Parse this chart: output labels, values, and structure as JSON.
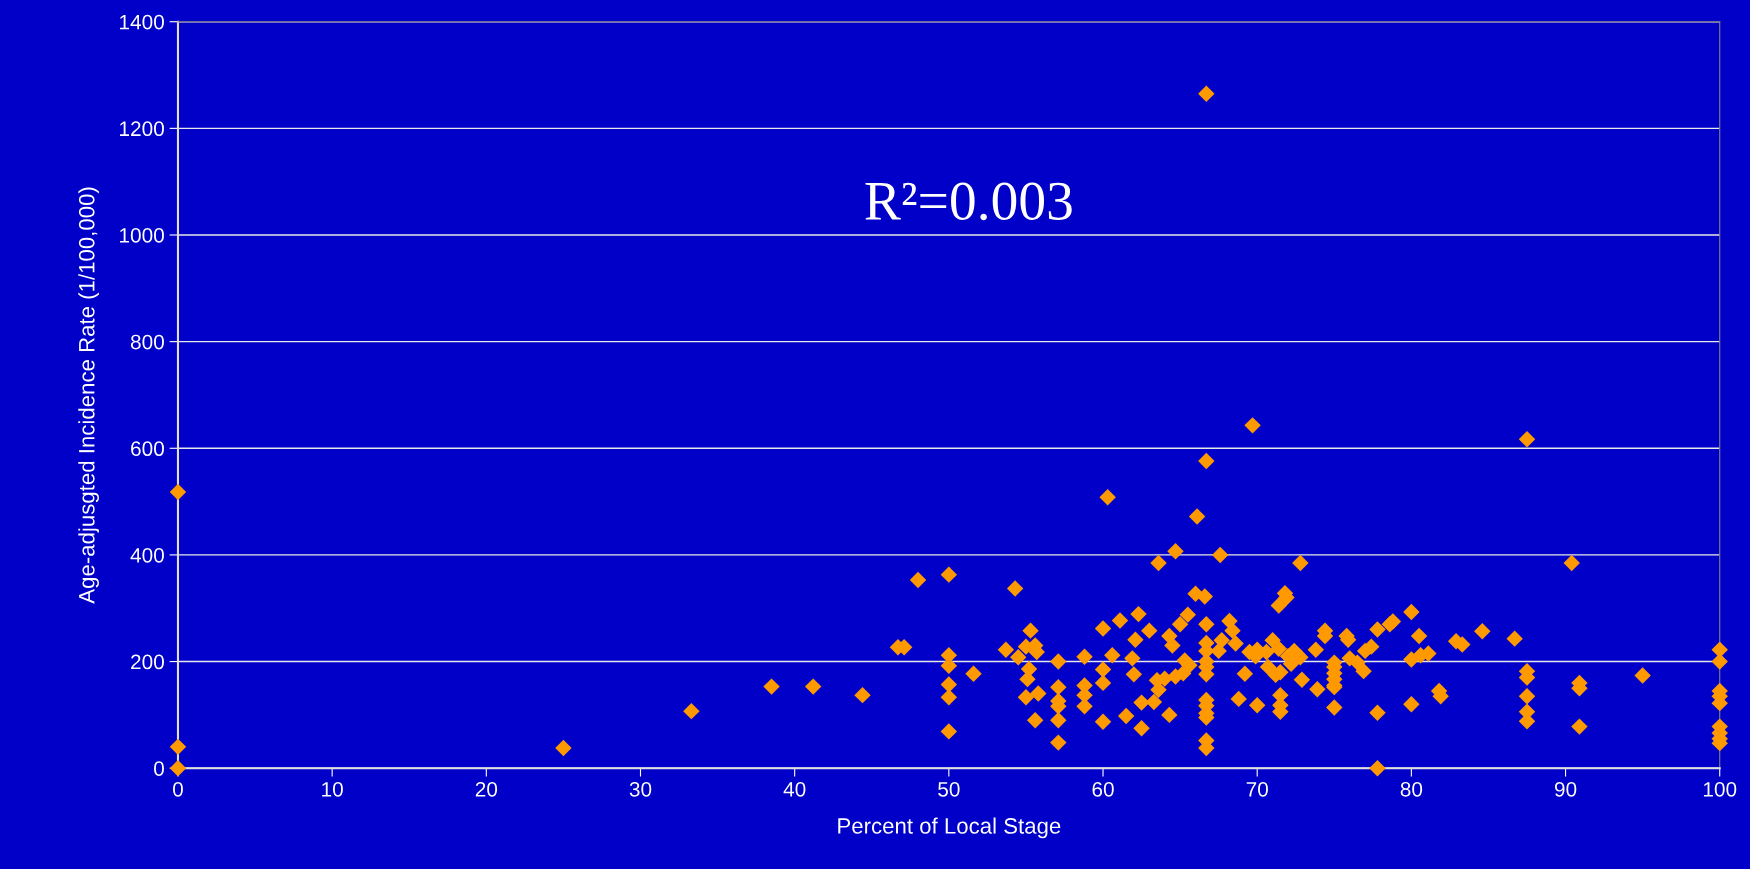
{
  "chart_data": {
    "type": "scatter",
    "xlabel": "Percent of Local Stage",
    "ylabel": "Age-adjusgted Incidence Rate (1/100,000)",
    "annotations": [
      "R²=0.003"
    ],
    "xlim": [
      0,
      100
    ],
    "xticks": [
      0,
      10,
      20,
      30,
      40,
      50,
      60,
      70,
      80,
      90,
      100
    ],
    "ylim": [
      0,
      1400
    ],
    "yticks": [
      0,
      200,
      400,
      600,
      800,
      1000,
      1200,
      1400
    ],
    "grid": "y",
    "marker": "diamond",
    "legend": false,
    "series": [
      {
        "color": "#ff9900",
        "x": [
          0,
          0,
          0,
          25,
          33.3,
          38.5,
          41.2,
          44.4,
          46.7,
          47.1,
          48,
          50,
          50,
          50,
          50,
          50,
          50,
          51.6,
          53.7,
          54.3,
          54.5,
          55,
          55.3,
          55.2,
          55.1,
          55,
          55.6,
          55.7,
          55.8,
          55.6,
          57.1,
          57.1,
          57.1,
          57.1,
          57.1,
          57.1,
          58.8,
          58.8,
          58.8,
          58.8,
          60,
          60,
          60,
          60,
          60.3,
          60.6,
          61.1,
          61.5,
          61.9,
          62,
          62.1,
          62.3,
          62.5,
          62.5,
          63,
          63.3,
          63.6,
          63.5,
          63.6,
          64,
          64.3,
          64.3,
          64.5,
          64.7,
          64.7,
          65,
          65.2,
          65.3,
          65.5,
          65.6,
          66,
          66.1,
          66.6,
          66.7,
          66.7,
          66.7,
          66.7,
          66.7,
          66.7,
          66.7,
          66.7,
          66.7,
          66.7,
          66.7,
          66.7,
          66.7,
          66.7,
          67.6,
          67.5,
          67.7,
          68.2,
          68.4,
          68.6,
          68.8,
          69.2,
          69.5,
          69.7,
          69.9,
          70,
          70,
          70.6,
          70.7,
          71,
          71.2,
          71.4,
          71.4,
          71.5,
          71.5,
          71.5,
          71.5,
          71.8,
          71.9,
          72,
          72.2,
          72.4,
          72.8,
          72.8,
          72.9,
          73.8,
          73.9,
          74.4,
          74.4,
          75,
          75,
          75,
          75,
          75,
          75,
          75,
          75.8,
          75.9,
          76,
          76.5,
          76.9,
          77,
          77.4,
          77.8,
          77.8,
          77.8,
          78.6,
          78.8,
          80,
          80,
          80,
          80.5,
          80.6,
          81.1,
          81.8,
          81.9,
          82.9,
          83.3,
          84.6,
          86.7,
          87.5,
          87.5,
          87.5,
          87.5,
          87.5,
          87.5,
          90.4,
          90.9,
          90.9,
          90.9,
          95,
          100,
          100,
          100,
          100,
          100,
          100,
          100,
          100,
          100
        ],
        "values": [
          518,
          40,
          0,
          38,
          107,
          153,
          153,
          137,
          227,
          227,
          353,
          363,
          212,
          192,
          157,
          133,
          69,
          177,
          222,
          337,
          208,
          228,
          258,
          186,
          167,
          133,
          230,
          218,
          140,
          90,
          200,
          152,
          126,
          116,
          90,
          48,
          209,
          155,
          137,
          116,
          262,
          185,
          160,
          87,
          508,
          212,
          277,
          98,
          206,
          176,
          241,
          289,
          123,
          75,
          258,
          124,
          385,
          165,
          147,
          168,
          100,
          248,
          230,
          407,
          172,
          270,
          178,
          202,
          288,
          193,
          327,
          472,
          322,
          1265,
          576,
          270,
          235,
          220,
          200,
          190,
          176,
          128,
          117,
          103,
          95,
          52,
          38,
          400,
          220,
          240,
          276,
          258,
          234,
          130,
          177,
          218,
          643,
          210,
          222,
          118,
          218,
          190,
          240,
          175,
          305,
          224,
          180,
          137,
          118,
          106,
          328,
          320,
          210,
          196,
          220,
          385,
          208,
          166,
          222,
          148,
          258,
          248,
          198,
          190,
          178,
          167,
          155,
          152,
          114,
          248,
          241,
          206,
          198,
          182,
          220,
          228,
          260,
          104,
          0,
          270,
          275,
          293,
          204,
          120,
          248,
          212,
          215,
          145,
          135,
          238,
          232,
          257,
          243,
          617,
          182,
          170,
          135,
          106,
          88,
          385,
          160,
          150,
          78,
          174,
          222,
          200,
          145,
          135,
          122,
          78,
          66,
          55,
          47
        ]
      }
    ]
  }
}
